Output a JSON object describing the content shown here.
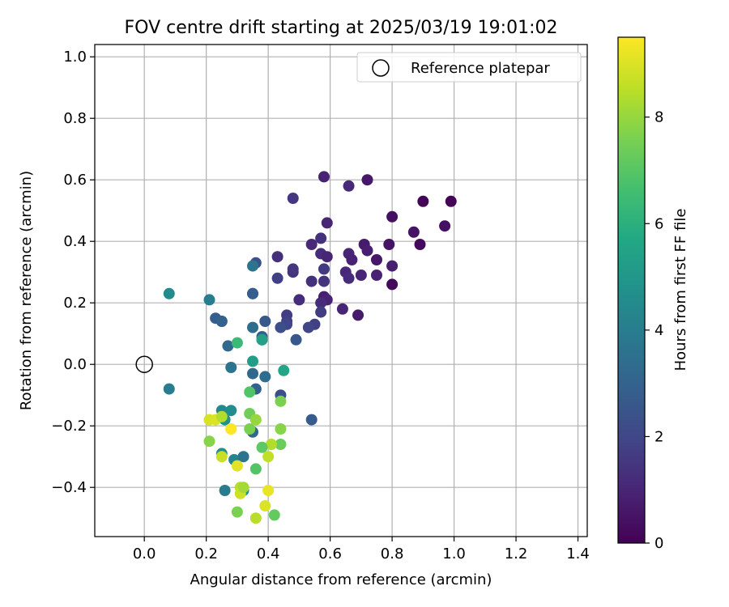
{
  "chart_data": {
    "type": "scatter",
    "title": "FOV centre drift starting at 2025/03/19 19:01:02",
    "xlabel": "Angular distance from reference (arcmin)",
    "ylabel": "Rotation from reference (arcmin)",
    "xlim": [
      -0.16,
      1.43
    ],
    "ylim": [
      -0.56,
      1.04
    ],
    "xticks": [
      0.0,
      0.2,
      0.4,
      0.6,
      0.8,
      1.0,
      1.2,
      1.4
    ],
    "xtick_labels": [
      "0.0",
      "0.2",
      "0.4",
      "0.6",
      "0.8",
      "1.0",
      "1.2",
      "1.4"
    ],
    "yticks": [
      -0.4,
      -0.2,
      0.0,
      0.2,
      0.4,
      0.6,
      0.8,
      1.0
    ],
    "ytick_labels": [
      "−0.4",
      "−0.2",
      "0.0",
      "0.2",
      "0.4",
      "0.6",
      "0.8",
      "1.0"
    ],
    "grid": true,
    "legend": {
      "placement": "top-right",
      "entries": [
        "Reference platepar"
      ]
    },
    "reference_point": {
      "x": 0.0,
      "y": 0.0,
      "marker": "open-circle"
    },
    "colorbar": {
      "label": "Hours from first FF file",
      "colormap": "viridis",
      "range": [
        0,
        9.5
      ],
      "ticks": [
        0,
        2,
        4,
        6,
        8
      ],
      "tick_labels": [
        "0",
        "2",
        "4",
        "6",
        "8"
      ]
    },
    "points": [
      {
        "x": 0.99,
        "y": 0.53,
        "c": 0.1
      },
      {
        "x": 0.9,
        "y": 0.53,
        "c": 0.1
      },
      {
        "x": 0.97,
        "y": 0.45,
        "c": 0.4
      },
      {
        "x": 0.89,
        "y": 0.39,
        "c": 0.2
      },
      {
        "x": 0.87,
        "y": 0.43,
        "c": 0.5
      },
      {
        "x": 0.8,
        "y": 0.48,
        "c": 0.4
      },
      {
        "x": 0.8,
        "y": 0.26,
        "c": 0.2
      },
      {
        "x": 0.79,
        "y": 0.39,
        "c": 0.5
      },
      {
        "x": 0.8,
        "y": 0.32,
        "c": 0.8
      },
      {
        "x": 0.72,
        "y": 0.6,
        "c": 0.6
      },
      {
        "x": 0.71,
        "y": 0.39,
        "c": 0.7
      },
      {
        "x": 0.72,
        "y": 0.37,
        "c": 0.8
      },
      {
        "x": 0.75,
        "y": 0.34,
        "c": 0.6
      },
      {
        "x": 0.75,
        "y": 0.29,
        "c": 0.9
      },
      {
        "x": 0.7,
        "y": 0.29,
        "c": 1.0
      },
      {
        "x": 0.69,
        "y": 0.16,
        "c": 0.7
      },
      {
        "x": 0.66,
        "y": 0.58,
        "c": 1.1
      },
      {
        "x": 0.66,
        "y": 0.36,
        "c": 1.0
      },
      {
        "x": 0.67,
        "y": 0.34,
        "c": 0.9
      },
      {
        "x": 0.65,
        "y": 0.3,
        "c": 1.1
      },
      {
        "x": 0.66,
        "y": 0.28,
        "c": 1.2
      },
      {
        "x": 0.64,
        "y": 0.18,
        "c": 1.0
      },
      {
        "x": 0.58,
        "y": 0.61,
        "c": 0.9
      },
      {
        "x": 0.59,
        "y": 0.46,
        "c": 1.0
      },
      {
        "x": 0.57,
        "y": 0.41,
        "c": 1.3
      },
      {
        "x": 0.57,
        "y": 0.36,
        "c": 1.2
      },
      {
        "x": 0.59,
        "y": 0.35,
        "c": 1.0
      },
      {
        "x": 0.58,
        "y": 0.31,
        "c": 1.6
      },
      {
        "x": 0.58,
        "y": 0.27,
        "c": 1.4
      },
      {
        "x": 0.58,
        "y": 0.22,
        "c": 0.8
      },
      {
        "x": 0.59,
        "y": 0.21,
        "c": 0.9
      },
      {
        "x": 0.57,
        "y": 0.2,
        "c": 1.2
      },
      {
        "x": 0.57,
        "y": 0.17,
        "c": 1.7
      },
      {
        "x": 0.54,
        "y": 0.39,
        "c": 1.1
      },
      {
        "x": 0.54,
        "y": 0.27,
        "c": 1.3
      },
      {
        "x": 0.55,
        "y": 0.13,
        "c": 1.8
      },
      {
        "x": 0.53,
        "y": 0.12,
        "c": 2.0
      },
      {
        "x": 0.48,
        "y": 0.54,
        "c": 1.5
      },
      {
        "x": 0.48,
        "y": 0.3,
        "c": 1.4
      },
      {
        "x": 0.48,
        "y": 0.31,
        "c": 1.5
      },
      {
        "x": 0.5,
        "y": 0.21,
        "c": 1.2
      },
      {
        "x": 0.46,
        "y": 0.16,
        "c": 1.7
      },
      {
        "x": 0.46,
        "y": 0.14,
        "c": 1.8
      },
      {
        "x": 0.46,
        "y": 0.13,
        "c": 2.0
      },
      {
        "x": 0.44,
        "y": 0.12,
        "c": 2.3
      },
      {
        "x": 0.43,
        "y": 0.35,
        "c": 1.3
      },
      {
        "x": 0.43,
        "y": 0.28,
        "c": 1.8
      },
      {
        "x": 0.44,
        "y": -0.1,
        "c": 2.3
      },
      {
        "x": 0.49,
        "y": 0.08,
        "c": 2.6
      },
      {
        "x": 0.36,
        "y": 0.33,
        "c": 2.4
      },
      {
        "x": 0.35,
        "y": 0.23,
        "c": 2.4
      },
      {
        "x": 0.35,
        "y": 0.23,
        "c": 2.8
      },
      {
        "x": 0.35,
        "y": 0.32,
        "c": 3.6
      },
      {
        "x": 0.35,
        "y": 0.12,
        "c": 3.4
      },
      {
        "x": 0.39,
        "y": 0.14,
        "c": 2.6
      },
      {
        "x": 0.38,
        "y": 0.09,
        "c": 2.9
      },
      {
        "x": 0.38,
        "y": 0.08,
        "c": 3.0
      },
      {
        "x": 0.39,
        "y": -0.04,
        "c": 3.4
      },
      {
        "x": 0.36,
        "y": -0.08,
        "c": 2.9
      },
      {
        "x": 0.35,
        "y": -0.03,
        "c": 3.2
      },
      {
        "x": 0.54,
        "y": -0.18,
        "c": 2.7
      },
      {
        "x": 0.23,
        "y": 0.15,
        "c": 2.8
      },
      {
        "x": 0.25,
        "y": 0.14,
        "c": 2.6
      },
      {
        "x": 0.25,
        "y": 0.14,
        "c": 3.0
      },
      {
        "x": 0.27,
        "y": 0.06,
        "c": 3.2
      },
      {
        "x": 0.28,
        "y": -0.01,
        "c": 3.6
      },
      {
        "x": 0.21,
        "y": 0.21,
        "c": 4.0
      },
      {
        "x": 0.08,
        "y": 0.23,
        "c": 4.5
      },
      {
        "x": 0.08,
        "y": -0.08,
        "c": 4.0
      },
      {
        "x": 0.35,
        "y": -0.22,
        "c": 3.2
      },
      {
        "x": 0.35,
        "y": 0.01,
        "c": 5.3
      },
      {
        "x": 0.38,
        "y": 0.08,
        "c": 5.4
      },
      {
        "x": 0.45,
        "y": -0.02,
        "c": 5.6
      },
      {
        "x": 0.3,
        "y": 0.07,
        "c": 6.4
      },
      {
        "x": 0.34,
        "y": -0.09,
        "c": 6.9
      },
      {
        "x": 0.44,
        "y": -0.12,
        "c": 7.6
      },
      {
        "x": 0.25,
        "y": -0.15,
        "c": 4.4
      },
      {
        "x": 0.28,
        "y": -0.15,
        "c": 4.6
      },
      {
        "x": 0.26,
        "y": -0.18,
        "c": 4.8
      },
      {
        "x": 0.25,
        "y": -0.29,
        "c": 4.7
      },
      {
        "x": 0.29,
        "y": -0.31,
        "c": 4.3
      },
      {
        "x": 0.32,
        "y": -0.3,
        "c": 3.6
      },
      {
        "x": 0.26,
        "y": -0.41,
        "c": 3.9
      },
      {
        "x": 0.32,
        "y": -0.41,
        "c": 4.9
      },
      {
        "x": 0.34,
        "y": -0.16,
        "c": 7.4
      },
      {
        "x": 0.34,
        "y": -0.21,
        "c": 7.6
      },
      {
        "x": 0.36,
        "y": -0.18,
        "c": 8.0
      },
      {
        "x": 0.44,
        "y": -0.21,
        "c": 7.8
      },
      {
        "x": 0.44,
        "y": -0.26,
        "c": 7.3
      },
      {
        "x": 0.41,
        "y": -0.26,
        "c": 8.4
      },
      {
        "x": 0.38,
        "y": -0.27,
        "c": 7.1
      },
      {
        "x": 0.4,
        "y": -0.3,
        "c": 8.6
      },
      {
        "x": 0.36,
        "y": -0.34,
        "c": 6.9
      },
      {
        "x": 0.3,
        "y": -0.33,
        "c": 9.1
      },
      {
        "x": 0.21,
        "y": -0.18,
        "c": 8.9
      },
      {
        "x": 0.23,
        "y": -0.18,
        "c": 9.0
      },
      {
        "x": 0.25,
        "y": -0.17,
        "c": 8.4
      },
      {
        "x": 0.28,
        "y": -0.21,
        "c": 9.3
      },
      {
        "x": 0.28,
        "y": -0.21,
        "c": 9.5
      },
      {
        "x": 0.21,
        "y": -0.25,
        "c": 7.8
      },
      {
        "x": 0.25,
        "y": -0.3,
        "c": 8.7
      },
      {
        "x": 0.31,
        "y": -0.4,
        "c": 8.5
      },
      {
        "x": 0.31,
        "y": -0.42,
        "c": 8.8
      },
      {
        "x": 0.32,
        "y": -0.4,
        "c": 8.2
      },
      {
        "x": 0.4,
        "y": -0.41,
        "c": 9.2
      },
      {
        "x": 0.3,
        "y": -0.48,
        "c": 7.6
      },
      {
        "x": 0.36,
        "y": -0.5,
        "c": 8.5
      },
      {
        "x": 0.39,
        "y": -0.46,
        "c": 9.0
      },
      {
        "x": 0.42,
        "y": -0.49,
        "c": 7.2
      }
    ]
  }
}
